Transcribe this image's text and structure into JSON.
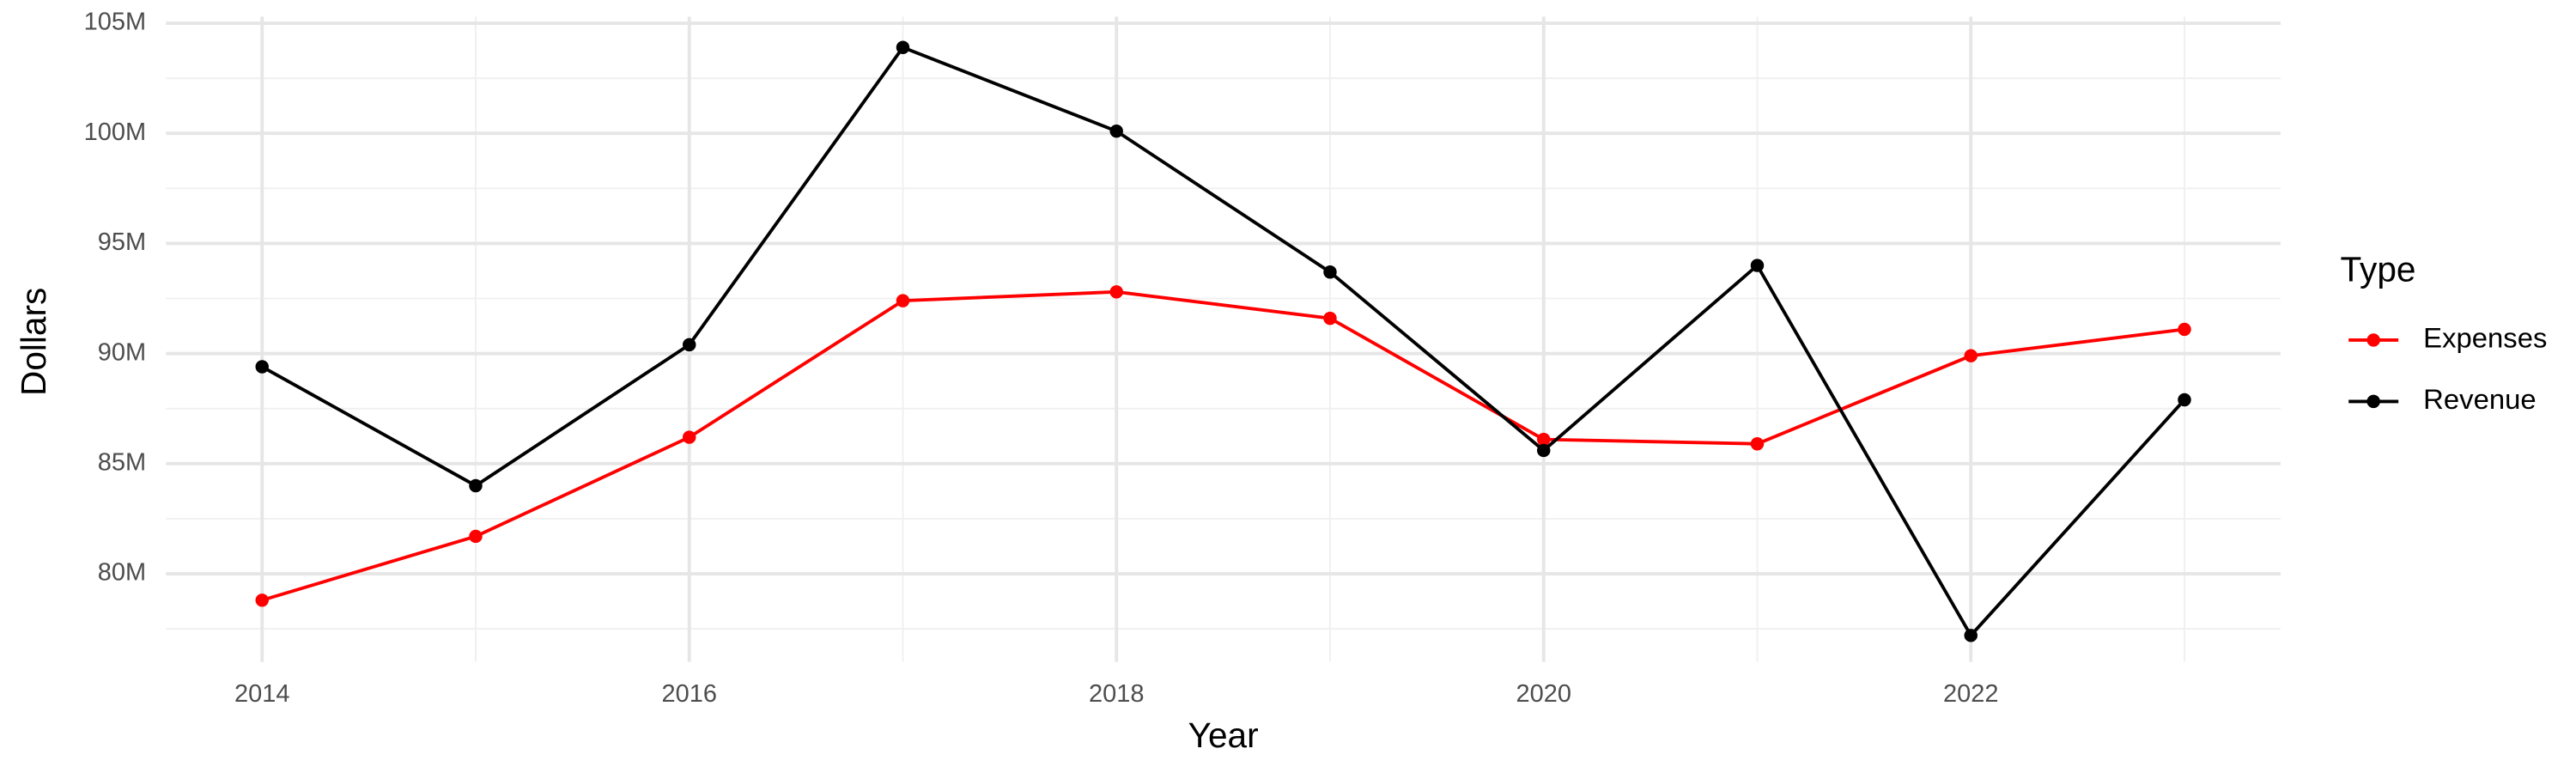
{
  "chart_data": {
    "type": "line",
    "x_label": "Year",
    "y_label": "Dollars",
    "legend_title": "Type",
    "legend_position": "right",
    "grid": true,
    "x": [
      2014,
      2015,
      2016,
      2017,
      2018,
      2019,
      2020,
      2021,
      2022,
      2023
    ],
    "series": [
      {
        "name": "Expenses",
        "color": "#ff0000",
        "values": [
          78800000,
          81700000,
          86200000,
          92400000,
          92800000,
          91600000,
          86100000,
          85900000,
          89900000,
          91100000
        ]
      },
      {
        "name": "Revenue",
        "color": "#000000",
        "values": [
          89400000,
          84000000,
          90400000,
          103900000,
          100100000,
          93700000,
          85600000,
          94000000,
          77200000,
          87900000
        ]
      }
    ],
    "xlim": [
      2013.55,
      2023.45
    ],
    "xticks": [
      2014,
      2016,
      2018,
      2020,
      2022
    ],
    "x_minor_ticks": [
      2015,
      2017,
      2019,
      2021,
      2023
    ],
    "ylim": [
      76000000,
      105000000
    ],
    "yticks": [
      {
        "value": 80000000,
        "label": "80M"
      },
      {
        "value": 85000000,
        "label": "85M"
      },
      {
        "value": 90000000,
        "label": "90M"
      },
      {
        "value": 95000000,
        "label": "95M"
      },
      {
        "value": 100000000,
        "label": "100M"
      },
      {
        "value": 105000000,
        "label": "105M"
      }
    ],
    "y_minor_ticks": [
      77500000,
      82500000,
      87500000,
      92500000,
      97500000,
      102500000
    ]
  }
}
